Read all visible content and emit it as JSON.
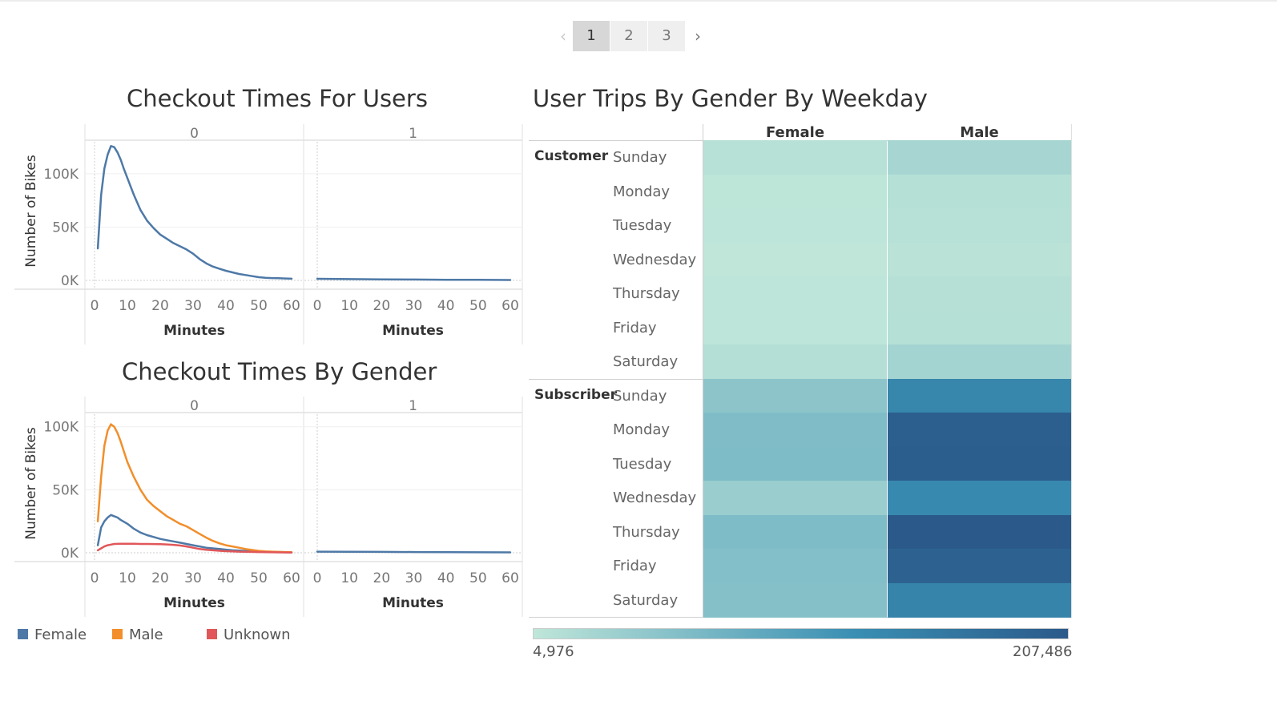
{
  "pager": {
    "pages": [
      "1",
      "2",
      "3"
    ],
    "active": "1",
    "prev_icon": "chevron-left-icon",
    "next_icon": "chevron-right-icon"
  },
  "line_chart_1": {
    "title": "Checkout Times For Users",
    "panel_labels": [
      "0",
      "1"
    ],
    "ylabel": "Number of Bikes",
    "xlabel": "Minutes",
    "yticks": [
      "0K",
      "50K",
      "100K"
    ],
    "xticks": [
      "0",
      "10",
      "20",
      "30",
      "40",
      "50",
      "60"
    ]
  },
  "line_chart_2": {
    "title": "Checkout Times By Gender",
    "panel_labels": [
      "0",
      "1"
    ],
    "ylabel": "Number of Bikes",
    "xlabel": "Minutes",
    "yticks": [
      "0K",
      "50K",
      "100K"
    ],
    "xticks": [
      "0",
      "10",
      "20",
      "30",
      "40",
      "50",
      "60"
    ]
  },
  "legend": [
    {
      "label": "Female",
      "color": "#4e79a7"
    },
    {
      "label": "Male",
      "color": "#f28e2b"
    },
    {
      "label": "Unknown",
      "color": "#e15759"
    }
  ],
  "heatmap": {
    "title": "User Trips By Gender By Weekday",
    "columns": [
      "Female",
      "Male"
    ],
    "groups": [
      "Customer",
      "Subscriber"
    ],
    "days": [
      "Sunday",
      "Monday",
      "Tuesday",
      "Wednesday",
      "Thursday",
      "Friday",
      "Saturday"
    ],
    "color_min_label": "4,976",
    "color_max_label": "207,486",
    "color_low": "#bfe6d9",
    "color_high": "#2b5a8a"
  },
  "chart_data": [
    {
      "type": "line",
      "title": "Checkout Times For Users",
      "xlabel": "Minutes",
      "ylabel": "Number of Bikes",
      "ylim": [
        0,
        130000
      ],
      "xlim": [
        0,
        60
      ],
      "panels": [
        {
          "panel": "0",
          "series": [
            {
              "color": "#4e79a7",
              "x": [
                1,
                2,
                3,
                4,
                5,
                6,
                7,
                8,
                9,
                10,
                11,
                12,
                13,
                14,
                15,
                16,
                18,
                20,
                22,
                24,
                26,
                28,
                30,
                32,
                34,
                36,
                38,
                40,
                42,
                44,
                46,
                48,
                50,
                52,
                54,
                56,
                58,
                60
              ],
              "y": [
                30000,
                80000,
                105000,
                118000,
                126000,
                125000,
                120000,
                113000,
                104000,
                96000,
                88000,
                80000,
                73000,
                66000,
                61000,
                56000,
                49000,
                43000,
                39000,
                35000,
                32000,
                29000,
                25000,
                20000,
                16000,
                13000,
                11000,
                9000,
                7500,
                6000,
                5000,
                4000,
                3000,
                2500,
                2200,
                2000,
                1800,
                1600
              ]
            }
          ]
        },
        {
          "panel": "1",
          "series": [
            {
              "color": "#4e79a7",
              "x": [
                0,
                10,
                20,
                30,
                40,
                50,
                60
              ],
              "y": [
                1500,
                1200,
                1000,
                800,
                600,
                500,
                400
              ]
            }
          ]
        }
      ]
    },
    {
      "type": "line",
      "title": "Checkout Times By Gender",
      "xlabel": "Minutes",
      "ylabel": "Number of Bikes",
      "ylim": [
        0,
        110000
      ],
      "xlim": [
        0,
        60
      ],
      "legend": "bottom",
      "panels": [
        {
          "panel": "0",
          "series": [
            {
              "name": "Female",
              "color": "#4e79a7",
              "x": [
                1,
                2,
                3,
                4,
                5,
                6,
                7,
                8,
                10,
                12,
                14,
                16,
                18,
                20,
                22,
                24,
                26,
                28,
                30,
                32,
                34,
                36,
                38,
                40,
                42,
                44,
                46,
                48,
                50,
                52,
                54,
                56,
                58,
                60
              ],
              "y": [
                6000,
                20000,
                25000,
                28000,
                30000,
                29000,
                28000,
                26000,
                23000,
                19000,
                16000,
                14000,
                12500,
                11000,
                10000,
                9000,
                8000,
                7000,
                6000,
                5000,
                4000,
                3500,
                3000,
                2500,
                2000,
                1700,
                1400,
                1200,
                1000,
                800,
                700,
                600,
                500,
                400
              ]
            },
            {
              "name": "Male",
              "color": "#f28e2b",
              "x": [
                1,
                2,
                3,
                4,
                5,
                6,
                7,
                8,
                9,
                10,
                11,
                12,
                13,
                14,
                15,
                16,
                18,
                20,
                22,
                24,
                26,
                28,
                30,
                32,
                34,
                36,
                38,
                40,
                42,
                44,
                46,
                48,
                50,
                52,
                54,
                56,
                58,
                60
              ],
              "y": [
                25000,
                60000,
                85000,
                97000,
                102000,
                100000,
                95000,
                88000,
                80000,
                72000,
                66000,
                60000,
                55000,
                50000,
                46000,
                42000,
                37000,
                33000,
                29000,
                26000,
                23000,
                21000,
                18000,
                15000,
                12000,
                9500,
                7500,
                6000,
                5000,
                4000,
                3000,
                2200,
                1500,
                1100,
                900,
                700,
                600,
                500
              ]
            },
            {
              "name": "Unknown",
              "color": "#e15759",
              "x": [
                1,
                2,
                3,
                4,
                5,
                6,
                8,
                10,
                12,
                14,
                16,
                18,
                20,
                22,
                24,
                26,
                28,
                30,
                32,
                34,
                36,
                38,
                40,
                42,
                44,
                46,
                48,
                50,
                52,
                54,
                56,
                58,
                60
              ],
              "y": [
                2000,
                3500,
                5000,
                6000,
                6500,
                7000,
                7200,
                7200,
                7100,
                7000,
                7000,
                6900,
                6800,
                6600,
                6300,
                5800,
                5000,
                4000,
                3000,
                2400,
                2000,
                1600,
                1300,
                1100,
                900,
                800,
                700,
                600,
                500,
                400,
                300,
                250,
                200
              ]
            }
          ]
        },
        {
          "panel": "1",
          "series": [
            {
              "name": "Female",
              "color": "#4e79a7",
              "x": [
                0,
                10,
                20,
                30,
                40,
                50,
                60
              ],
              "y": [
                900,
                800,
                700,
                600,
                500,
                400,
                300
              ]
            }
          ]
        }
      ]
    },
    {
      "type": "heatmap",
      "title": "User Trips By Gender By Weekday",
      "x": [
        "Female",
        "Male"
      ],
      "y_groups": [
        "Customer",
        "Subscriber"
      ],
      "y": [
        "Sunday",
        "Monday",
        "Tuesday",
        "Wednesday",
        "Thursday",
        "Friday",
        "Saturday"
      ],
      "scale": [
        4976,
        207486
      ],
      "values": {
        "Customer": {
          "Female": [
            12000,
            7000,
            6500,
            5000,
            6000,
            6000,
            15000
          ],
          "Male": [
            27000,
            14000,
            12000,
            10000,
            13000,
            14000,
            30000
          ]
        },
        "Subscriber": {
          "Female": [
            52000,
            63000,
            64000,
            40000,
            64000,
            60000,
            58000
          ],
          "Male": [
            140000,
            200000,
            202000,
            135000,
            207486,
            195000,
            143000
          ]
        }
      }
    }
  ]
}
